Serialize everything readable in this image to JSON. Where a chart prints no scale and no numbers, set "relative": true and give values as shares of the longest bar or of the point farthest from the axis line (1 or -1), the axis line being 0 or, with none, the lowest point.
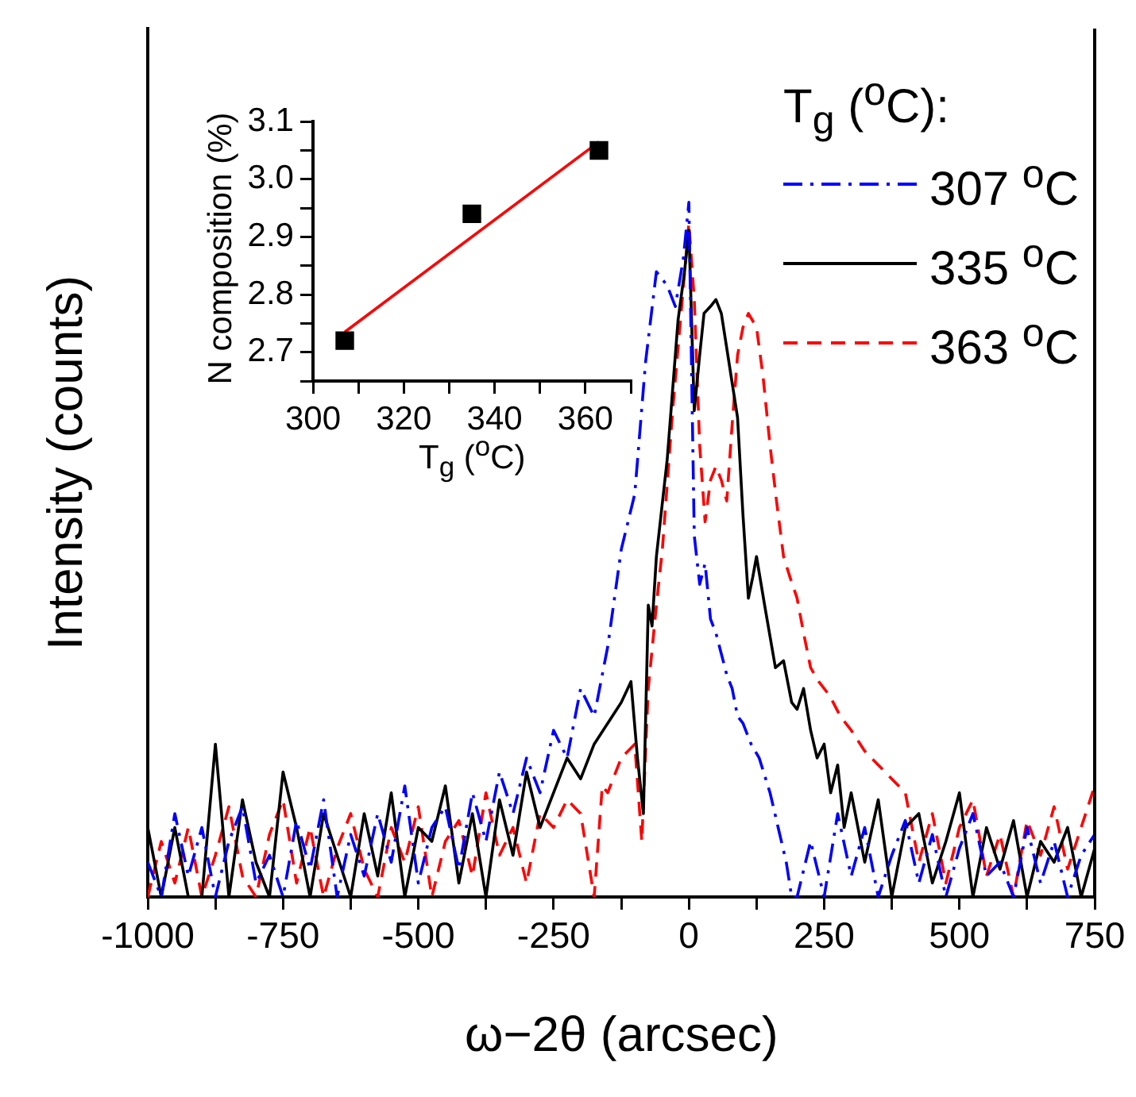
{
  "chart_data": [
    {
      "type": "line",
      "relative": true,
      "xlabel": "ω−2θ (arcsec)",
      "ylabel": "Intensity (counts)",
      "legend_title": "T$_{g}$ ($^{o}$C):",
      "legend": "top right",
      "grid": false,
      "xlim": [
        -1000,
        750
      ],
      "xticks": [
        -1000,
        {
          "value": -875,
          "label": null
        },
        -750,
        {
          "value": -625,
          "label": null
        },
        -500,
        {
          "value": -375,
          "label": null
        },
        -250,
        {
          "value": -125,
          "label": null
        },
        0,
        {
          "value": 125,
          "label": null
        },
        250,
        {
          "value": 375,
          "label": null
        },
        500,
        {
          "value": 625,
          "label": null
        },
        750
      ],
      "series": [
        {
          "name": "307 $^{o}$C",
          "color": "#0000ff",
          "line_style": "dashdot",
          "x": [
            -1000,
            -975,
            -950,
            -925,
            -900,
            -875,
            -850,
            -825,
            -800,
            -775,
            -750,
            -725,
            -700,
            -675,
            -650,
            -625,
            -600,
            -575,
            -550,
            -525,
            -500,
            -475,
            -450,
            -425,
            -400,
            -375,
            -350,
            -325,
            -300,
            -275,
            -250,
            -225,
            -200,
            -175,
            -150,
            -125,
            -100,
            -80,
            -60,
            -40,
            -25,
            -10,
            0,
            10,
            20,
            30,
            40,
            50,
            60,
            70,
            80,
            90,
            100,
            115,
            130,
            150,
            165,
            180,
            190,
            200,
            225,
            250,
            275,
            300,
            325,
            350,
            375,
            400,
            425,
            450,
            475,
            500,
            525,
            550,
            575,
            600,
            625,
            650,
            675,
            700,
            725,
            750
          ],
          "values": [
            0.05,
            0.0,
            0.12,
            0.03,
            0.1,
            0.0,
            0.08,
            0.13,
            0.02,
            0.06,
            0.0,
            0.11,
            0.04,
            0.14,
            0.0,
            0.09,
            0.03,
            0.12,
            0.05,
            0.16,
            0.02,
            0.1,
            0.13,
            0.04,
            0.15,
            0.08,
            0.18,
            0.12,
            0.2,
            0.15,
            0.24,
            0.2,
            0.3,
            0.26,
            0.36,
            0.5,
            0.58,
            0.77,
            0.9,
            0.88,
            0.85,
            0.92,
            1.0,
            0.52,
            0.45,
            0.48,
            0.4,
            0.38,
            0.35,
            0.32,
            0.3,
            0.26,
            0.25,
            0.22,
            0.2,
            0.15,
            0.1,
            0.05,
            0.0,
            0.0,
            0.08,
            0.0,
            0.12,
            0.03,
            0.1,
            0.0,
            0.06,
            0.11,
            0.02,
            0.09,
            0.0,
            0.07,
            0.12,
            0.03,
            0.05,
            0.0,
            0.1,
            0.02,
            0.08,
            0.0,
            0.06,
            0.09
          ]
        },
        {
          "name": "335 $^{o}$C",
          "color": "#000000",
          "line_style": "solid",
          "x": [
            -1000,
            -975,
            -950,
            -925,
            -900,
            -875,
            -850,
            -825,
            -800,
            -775,
            -750,
            -725,
            -700,
            -675,
            -650,
            -625,
            -600,
            -575,
            -550,
            -525,
            -500,
            -475,
            -450,
            -425,
            -400,
            -375,
            -350,
            -325,
            -300,
            -275,
            -250,
            -225,
            -200,
            -175,
            -150,
            -125,
            -107,
            -95,
            -84,
            -75,
            -68,
            -60,
            -40,
            -20,
            -8,
            0,
            10,
            20,
            28,
            40,
            50,
            60,
            70,
            80,
            90,
            100,
            110,
            118,
            125,
            140,
            160,
            175,
            190,
            200,
            212,
            225,
            237,
            250,
            262,
            275,
            287,
            300,
            325,
            350,
            375,
            400,
            425,
            450,
            475,
            500,
            525,
            550,
            575,
            600,
            625,
            650,
            675,
            700,
            725,
            750
          ],
          "values": [
            0.1,
            0.0,
            0.1,
            0.0,
            0.0,
            0.22,
            0.0,
            0.14,
            0.05,
            0.0,
            0.18,
            0.1,
            0.0,
            0.12,
            0.06,
            0.0,
            0.12,
            0.03,
            0.15,
            0.0,
            0.1,
            0.08,
            0.16,
            0.02,
            0.12,
            0.0,
            0.14,
            0.06,
            0.18,
            0.1,
            0.15,
            0.2,
            0.17,
            0.22,
            0.25,
            0.28,
            0.31,
            0.2,
            0.12,
            0.42,
            0.39,
            0.49,
            0.63,
            0.83,
            0.9,
            0.96,
            0.7,
            0.78,
            0.84,
            0.85,
            0.86,
            0.84,
            0.79,
            0.74,
            0.69,
            0.55,
            0.43,
            0.46,
            0.49,
            0.42,
            0.33,
            0.34,
            0.28,
            0.27,
            0.3,
            0.24,
            0.2,
            0.22,
            0.15,
            0.19,
            0.1,
            0.15,
            0.05,
            0.14,
            0.0,
            0.1,
            0.12,
            0.02,
            0.08,
            0.15,
            0.0,
            0.1,
            0.04,
            0.11,
            0.0,
            0.08,
            0.05,
            0.1,
            0.0,
            0.07
          ]
        },
        {
          "name": "363 $^{o}$C",
          "color": "#ff0000",
          "line_style": "dashed",
          "x": [
            -1000,
            -975,
            -950,
            -925,
            -900,
            -875,
            -850,
            -825,
            -800,
            -775,
            -750,
            -725,
            -700,
            -675,
            -650,
            -625,
            -600,
            -575,
            -550,
            -525,
            -500,
            -475,
            -450,
            -425,
            -400,
            -375,
            -350,
            -325,
            -300,
            -275,
            -250,
            -225,
            -200,
            -175,
            -160,
            -150,
            -125,
            -100,
            -87,
            -75,
            -60,
            -49,
            -30,
            -10,
            0,
            10,
            20,
            30,
            40,
            50,
            60,
            70,
            80,
            90,
            100,
            110,
            125,
            137,
            150,
            162,
            175,
            187,
            200,
            212,
            225,
            240,
            260,
            280,
            300,
            325,
            350,
            375,
            400,
            425,
            450,
            475,
            500,
            525,
            550,
            575,
            600,
            625,
            650,
            675,
            700,
            725,
            750
          ],
          "values": [
            0.0,
            0.08,
            0.02,
            0.1,
            0.0,
            0.06,
            0.13,
            0.03,
            0.0,
            0.09,
            0.14,
            0.02,
            0.1,
            0.0,
            0.07,
            0.12,
            0.04,
            0.0,
            0.1,
            0.05,
            0.13,
            0.0,
            0.08,
            0.11,
            0.03,
            0.15,
            0.06,
            0.1,
            0.02,
            0.12,
            0.1,
            0.14,
            0.12,
            0.0,
            0.16,
            0.15,
            0.2,
            0.22,
            0.08,
            0.3,
            0.42,
            0.5,
            0.7,
            0.88,
            0.97,
            0.86,
            0.65,
            0.54,
            0.6,
            0.62,
            0.6,
            0.57,
            0.68,
            0.78,
            0.82,
            0.84,
            0.82,
            0.75,
            0.65,
            0.57,
            0.49,
            0.46,
            0.43,
            0.38,
            0.33,
            0.31,
            0.29,
            0.26,
            0.24,
            0.21,
            0.19,
            0.17,
            0.15,
            0.05,
            0.12,
            0.02,
            0.1,
            0.14,
            0.03,
            0.09,
            0.0,
            0.11,
            0.06,
            0.13,
            0.04,
            0.1,
            0.16
          ]
        }
      ]
    },
    {
      "type": "scatter",
      "xlabel": "T$_{g}$ ($^{o}$C)",
      "ylabel": "N composition (%)",
      "grid": false,
      "legend": false,
      "xlim": [
        300,
        370
      ],
      "xticks": [
        300,
        {
          "value": 310,
          "label": null
        },
        320,
        {
          "value": 330,
          "label": null
        },
        340,
        {
          "value": 350,
          "label": null
        },
        360,
        {
          "value": 370,
          "label": null
        }
      ],
      "ylim": [
        2.65,
        3.1
      ],
      "yticks": [
        {
          "value": 2.65,
          "label": null
        },
        2.7,
        {
          "value": 2.75,
          "label": null
        },
        2.8,
        {
          "value": 2.85,
          "label": null
        },
        2.9,
        {
          "value": 2.95,
          "label": null
        },
        {
          "value": 3,
          "label": "3.0"
        },
        {
          "value": 3.05,
          "label": null
        },
        3.1
      ],
      "series": [
        {
          "type": "scatter",
          "marker": "square",
          "color": "#000000",
          "x": [
            307,
            335,
            363
          ],
          "values": [
            2.72,
            2.94,
            3.05
          ]
        },
        {
          "type": "line",
          "color": "#ff0000",
          "line_style": "solid",
          "x": [
            307,
            363
          ],
          "values": [
            2.735,
            3.065
          ]
        }
      ]
    }
  ]
}
